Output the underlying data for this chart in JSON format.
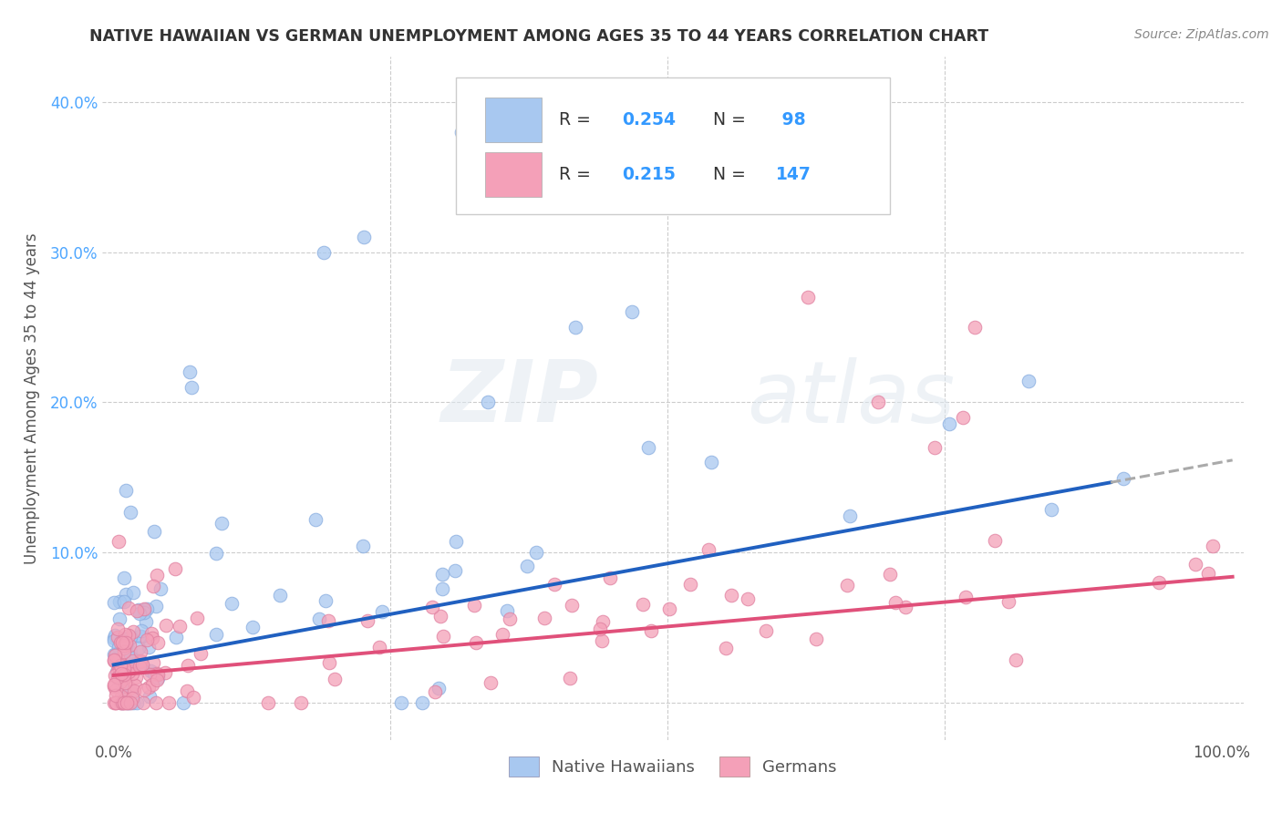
{
  "title": "NATIVE HAWAIIAN VS GERMAN UNEMPLOYMENT AMONG AGES 35 TO 44 YEARS CORRELATION CHART",
  "source": "Source: ZipAtlas.com",
  "ylabel": "Unemployment Among Ages 35 to 44 years",
  "xlim": [
    -0.01,
    1.02
  ],
  "ylim": [
    -0.025,
    0.43
  ],
  "xticks": [
    0.0,
    0.25,
    0.5,
    0.75,
    1.0
  ],
  "xticklabels": [
    "0.0%",
    "",
    "",
    "",
    "100.0%"
  ],
  "yticks": [
    0.0,
    0.1,
    0.2,
    0.3,
    0.4
  ],
  "yticklabels": [
    "",
    "10.0%",
    "20.0%",
    "30.0%",
    "40.0%"
  ],
  "hawaiian_color": "#A8C8F0",
  "german_color": "#F4A0B8",
  "hawaiian_R": 0.254,
  "hawaiian_N": 98,
  "german_R": 0.215,
  "german_N": 147,
  "trend_hawaiian_color": "#2060C0",
  "trend_german_color": "#E0507A",
  "trend_extrapolate_color": "#AAAAAA",
  "watermark_zip": "ZIP",
  "watermark_atlas": "atlas",
  "background_color": "#ffffff",
  "tick_color": "#4da6ff",
  "title_color": "#333333",
  "label_color": "#555555",
  "grid_color": "#cccccc",
  "hawaiian_trend_intercept": 0.025,
  "hawaiian_trend_slope": 0.135,
  "hawaiian_trend_solid_end": 0.9,
  "german_trend_intercept": 0.018,
  "german_trend_slope": 0.065
}
